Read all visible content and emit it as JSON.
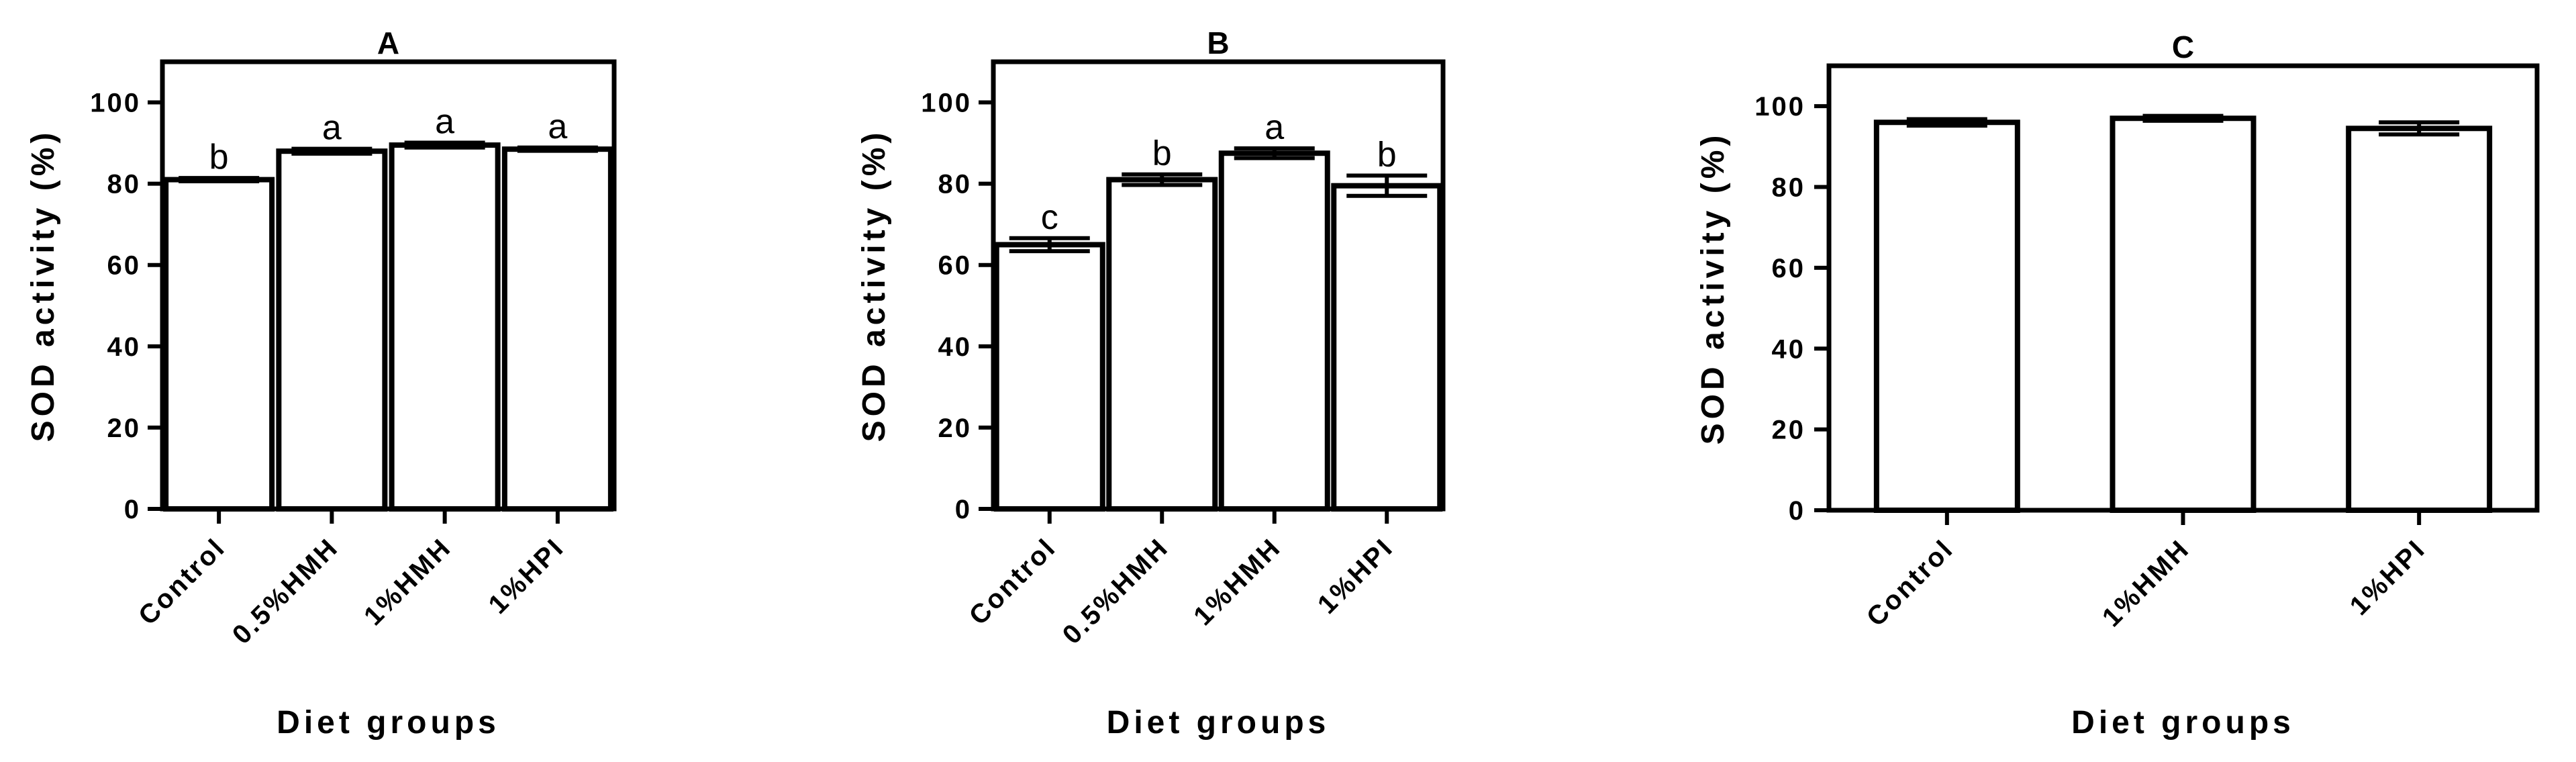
{
  "chart_data": [
    {
      "type": "bar",
      "title": "A",
      "xlabel": "Diet groups",
      "ylabel": "SOD activity (%)",
      "ylim": [
        0,
        110
      ],
      "yticks": [
        "0",
        "20",
        "40",
        "60",
        "80",
        "100"
      ],
      "categories": [
        "Control",
        "0.5%HMH",
        "1%HMH",
        "1%HPI"
      ],
      "values": [
        81,
        88,
        89.5,
        88.5
      ],
      "errors": [
        0.4,
        0.6,
        0.6,
        0.4
      ],
      "sig": [
        "b",
        "a",
        "a",
        "a"
      ]
    },
    {
      "type": "bar",
      "title": "B",
      "xlabel": "Diet groups",
      "ylabel": "SOD activity (%)",
      "ylim": [
        0,
        110
      ],
      "yticks": [
        "0",
        "20",
        "40",
        "60",
        "80",
        "100"
      ],
      "categories": [
        "Control",
        "0.5%HMH",
        "1%HMH",
        "1%HPI"
      ],
      "values": [
        65,
        81,
        87.5,
        79.5
      ],
      "errors": [
        1.6,
        1.3,
        1.2,
        2.5
      ],
      "sig": [
        "c",
        "b",
        "a",
        "b"
      ]
    },
    {
      "type": "bar",
      "title": "C",
      "xlabel": "Diet groups",
      "ylabel": "SOD activity (%)",
      "ylim": [
        0,
        110
      ],
      "yticks": [
        "0",
        "20",
        "40",
        "60",
        "80",
        "100"
      ],
      "categories": [
        "Control",
        "1%HMH",
        "1%HPI"
      ],
      "values": [
        96,
        97,
        94.5
      ],
      "errors": [
        0.8,
        0.6,
        1.5
      ],
      "sig": [
        "",
        "",
        ""
      ]
    }
  ]
}
